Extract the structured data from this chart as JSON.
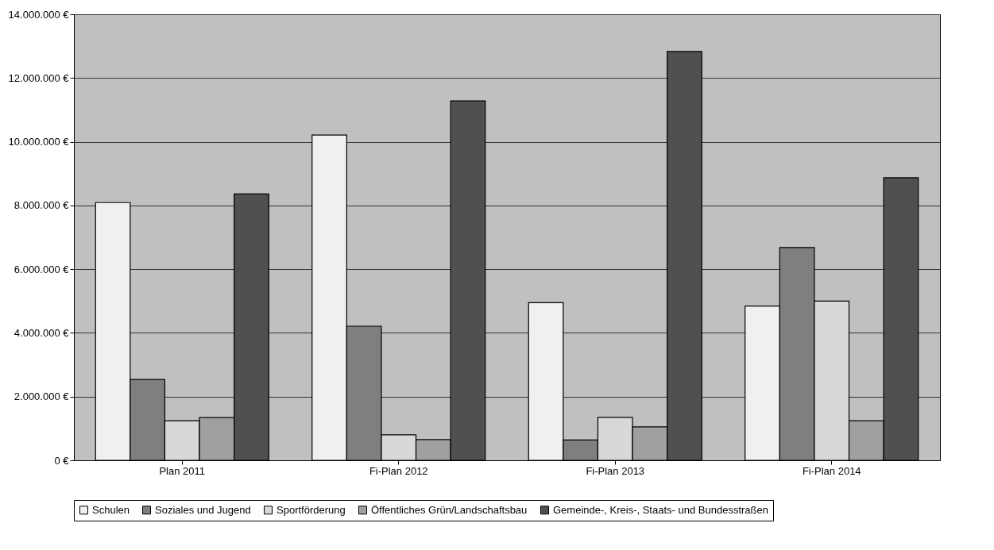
{
  "chart_data": {
    "type": "bar",
    "categories": [
      "Plan 2011",
      "Fi-Plan 2012",
      "Fi-Plan 2013",
      "Fi-Plan 2014"
    ],
    "series": [
      {
        "name": "Schulen",
        "color": "#f0f0f0",
        "values": [
          8090000,
          10210000,
          4950000,
          4840000
        ]
      },
      {
        "name": "Soziales und Jugend",
        "color": "#7f7f7f",
        "values": [
          2540000,
          4210000,
          640000,
          6680000
        ]
      },
      {
        "name": "Sportförderung",
        "color": "#d8d8d8",
        "values": [
          1240000,
          800000,
          1350000,
          5000000
        ]
      },
      {
        "name": "Öffentliches Grün/Landschaftsbau",
        "color": "#a0a0a0",
        "values": [
          1340000,
          650000,
          1050000,
          1240000
        ]
      },
      {
        "name": "Gemeinde-, Kreis-, Staats- und Bundesstraßen",
        "color": "#505050",
        "values": [
          8360000,
          11280000,
          12830000,
          8870000
        ]
      }
    ],
    "ylim": [
      0,
      14000000
    ],
    "yticks": [
      {
        "value": 0,
        "label": "0 €"
      },
      {
        "value": 2000000,
        "label": "2.000.000 €"
      },
      {
        "value": 4000000,
        "label": "4.000.000 €"
      },
      {
        "value": 6000000,
        "label": "6.000.000 €"
      },
      {
        "value": 8000000,
        "label": "8.000.000 €"
      },
      {
        "value": 10000000,
        "label": "10.000.000 €"
      },
      {
        "value": 12000000,
        "label": "12.000.000 €"
      },
      {
        "value": 14000000,
        "label": "14.000.000 €"
      }
    ],
    "grid": "y",
    "legend": "bottom"
  }
}
